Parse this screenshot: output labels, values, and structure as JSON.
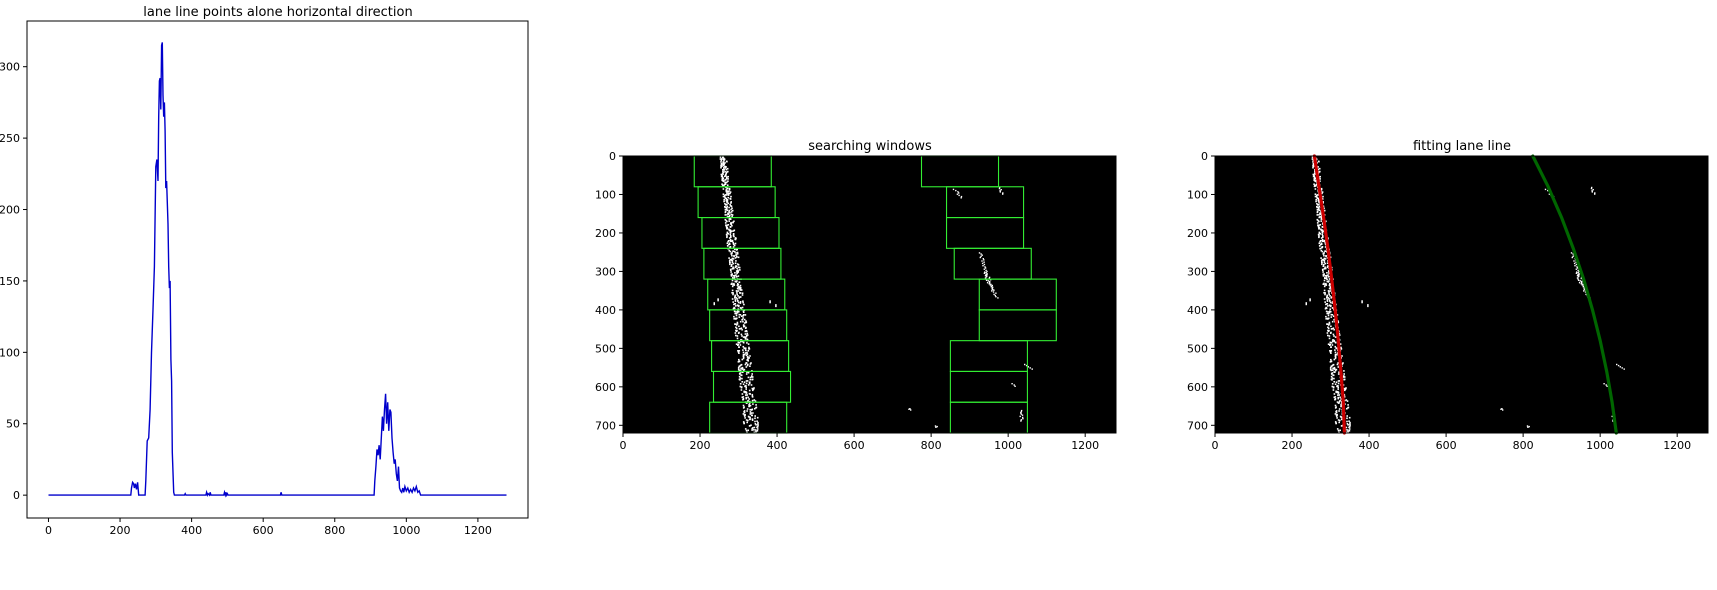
{
  "chart_data": [
    {
      "type": "line",
      "title": "lane line points alone horizontal direction",
      "xlabel": "",
      "ylabel": "",
      "xlim": [
        -60,
        1340
      ],
      "ylim": [
        -16,
        332
      ],
      "xticks": [
        0,
        200,
        400,
        600,
        800,
        1000,
        1200
      ],
      "yticks": [
        0,
        50,
        100,
        150,
        200,
        250,
        300
      ],
      "grid": false,
      "series": [
        {
          "color": "#0000cc",
          "x": [
            0,
            230,
            232,
            235,
            238,
            240,
            243,
            246,
            249,
            252,
            270,
            272,
            276,
            280,
            284,
            288,
            292,
            296,
            300,
            303,
            306,
            308,
            310,
            312,
            314,
            316,
            318,
            320,
            322,
            324,
            326,
            328,
            330,
            332,
            334,
            336,
            338,
            340,
            342,
            344,
            346,
            350,
            352,
            380,
            382,
            384,
            440,
            442,
            444,
            446,
            450,
            452,
            454,
            456,
            490,
            492,
            494,
            496,
            498,
            500,
            502,
            648,
            650,
            652,
            910,
            912,
            915,
            918,
            921,
            924,
            927,
            930,
            933,
            936,
            939,
            942,
            945,
            948,
            951,
            954,
            957,
            960,
            963,
            966,
            969,
            972,
            975,
            978,
            981,
            984,
            987,
            990,
            993,
            996,
            1000,
            1004,
            1008,
            1012,
            1016,
            1020,
            1024,
            1028,
            1032,
            1036,
            1040,
            1044,
            1048,
            1052,
            1056,
            1060,
            1280
          ],
          "y": [
            0,
            0,
            5,
            9,
            8,
            5,
            8,
            4,
            9,
            0,
            0,
            10,
            38,
            40,
            60,
            100,
            130,
            160,
            230,
            235,
            220,
            265,
            290,
            292,
            270,
            315,
            317,
            280,
            265,
            275,
            255,
            215,
            220,
            205,
            190,
            160,
            145,
            150,
            95,
            80,
            30,
            2,
            0,
            0,
            1,
            0,
            0,
            2,
            0,
            1,
            0,
            2,
            0,
            0,
            0,
            2,
            0,
            2,
            0,
            1,
            0,
            0,
            2,
            0,
            0,
            10,
            20,
            32,
            28,
            35,
            25,
            40,
            55,
            45,
            60,
            71,
            50,
            65,
            45,
            60,
            58,
            40,
            30,
            22,
            25,
            15,
            10,
            20,
            5,
            3,
            2,
            5,
            2,
            6,
            3,
            5,
            2,
            4,
            2,
            5,
            3,
            6,
            2,
            3,
            0,
            0,
            0,
            0,
            0,
            0,
            0
          ]
        }
      ]
    },
    {
      "type": "image",
      "title": "searching windows",
      "xlabel": "",
      "ylabel": "",
      "xlim": [
        0,
        1280
      ],
      "ylim": [
        720,
        0
      ],
      "xticks": [
        0,
        200,
        400,
        600,
        800,
        1000,
        1200
      ],
      "yticks": [
        0,
        100,
        200,
        300,
        400,
        500,
        600,
        700
      ],
      "background": "#000000",
      "window_color": "#33ee33",
      "lane_pixel_color": "#ffffff",
      "left_windows": [
        {
          "x1": 185,
          "y1": 0,
          "x2": 385,
          "y2": 80
        },
        {
          "x1": 195,
          "y1": 80,
          "x2": 395,
          "y2": 160
        },
        {
          "x1": 205,
          "y1": 160,
          "x2": 405,
          "y2": 240
        },
        {
          "x1": 210,
          "y1": 240,
          "x2": 410,
          "y2": 320
        },
        {
          "x1": 220,
          "y1": 320,
          "x2": 420,
          "y2": 400
        },
        {
          "x1": 225,
          "y1": 400,
          "x2": 425,
          "y2": 480
        },
        {
          "x1": 230,
          "y1": 480,
          "x2": 430,
          "y2": 560
        },
        {
          "x1": 235,
          "y1": 560,
          "x2": 435,
          "y2": 640
        },
        {
          "x1": 225,
          "y1": 640,
          "x2": 425,
          "y2": 720
        }
      ],
      "right_windows": [
        {
          "x1": 775,
          "y1": 0,
          "x2": 975,
          "y2": 80
        },
        {
          "x1": 840,
          "y1": 80,
          "x2": 1040,
          "y2": 160
        },
        {
          "x1": 840,
          "y1": 160,
          "x2": 1040,
          "y2": 240
        },
        {
          "x1": 860,
          "y1": 240,
          "x2": 1060,
          "y2": 320
        },
        {
          "x1": 925,
          "y1": 320,
          "x2": 1125,
          "y2": 400
        },
        {
          "x1": 925,
          "y1": 400,
          "x2": 1125,
          "y2": 480
        },
        {
          "x1": 850,
          "y1": 480,
          "x2": 1050,
          "y2": 560
        },
        {
          "x1": 850,
          "y1": 560,
          "x2": 1050,
          "y2": 640
        },
        {
          "x1": 850,
          "y1": 640,
          "x2": 1050,
          "y2": 720
        }
      ]
    },
    {
      "type": "image",
      "title": "fitting lane line",
      "xlabel": "",
      "ylabel": "",
      "xlim": [
        0,
        1280
      ],
      "ylim": [
        720,
        0
      ],
      "xticks": [
        0,
        200,
        400,
        600,
        800,
        1000,
        1200
      ],
      "yticks": [
        0,
        100,
        200,
        300,
        400,
        500,
        600,
        700
      ],
      "background": "#000000",
      "lane_pixel_color": "#ffffff",
      "fits": [
        {
          "color": "#cc0000",
          "x": [
            258,
            270,
            282,
            293,
            303,
            312,
            320,
            327,
            333,
            336
          ],
          "y": [
            0,
            80,
            160,
            240,
            320,
            400,
            480,
            560,
            640,
            720
          ]
        },
        {
          "color": "#006600",
          "x": [
            825,
            865,
            900,
            930,
            957,
            980,
            1000,
            1017,
            1031,
            1042
          ],
          "y": [
            0,
            80,
            160,
            240,
            320,
            400,
            480,
            560,
            640,
            720
          ]
        }
      ]
    }
  ]
}
